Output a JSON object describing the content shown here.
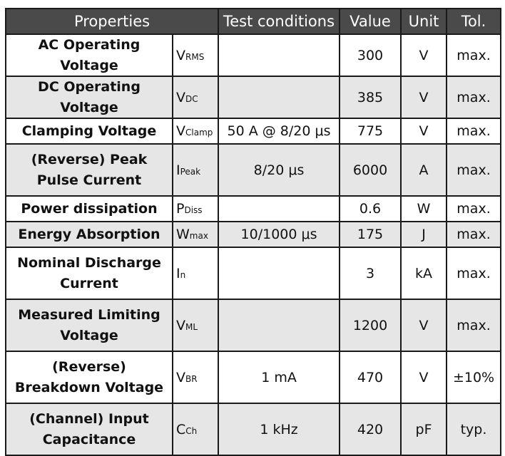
{
  "table": {
    "headers": [
      "Properties",
      "Test conditions",
      "Value",
      "Unit",
      "Tol."
    ],
    "rows": [
      {
        "property": "AC Operating Voltage",
        "symbol_main": "V",
        "symbol_sub": "RMS",
        "test_conditions": "",
        "value": "300",
        "unit": "V",
        "tolerance": "max."
      },
      {
        "property": "DC Operating Voltage",
        "symbol_main": "V",
        "symbol_sub": "DC",
        "test_conditions": "",
        "value": "385",
        "unit": "V",
        "tolerance": "max."
      },
      {
        "property": "Clamping Voltage",
        "symbol_main": "V",
        "symbol_sub": "Clamp",
        "test_conditions": "50 A @ 8/20 μs",
        "value": "775",
        "unit": "V",
        "tolerance": "max."
      },
      {
        "property": "(Reverse) Peak Pulse Current",
        "symbol_main": "I",
        "symbol_sub": "Peak",
        "test_conditions": "8/20 μs",
        "value": "6000",
        "unit": "A",
        "tolerance": "max."
      },
      {
        "property": "Power dissipation",
        "symbol_main": "P",
        "symbol_sub": "Diss",
        "test_conditions": "",
        "value": "0.6",
        "unit": "W",
        "tolerance": "max."
      },
      {
        "property": "Energy Absorption",
        "symbol_main": "W",
        "symbol_sub": "max",
        "test_conditions": "10/1000 μs",
        "value": "175",
        "unit": "J",
        "tolerance": "max."
      },
      {
        "property": "Nominal Discharge Current",
        "symbol_main": "I",
        "symbol_sub": "n",
        "test_conditions": "",
        "value": "3",
        "unit": "kA",
        "tolerance": "max."
      },
      {
        "property": "Measured Limiting Voltage",
        "symbol_main": "V",
        "symbol_sub": "ML",
        "test_conditions": "",
        "value": "1200",
        "unit": "V",
        "tolerance": "max."
      },
      {
        "property": "(Reverse) Breakdown Voltage",
        "symbol_main": "V",
        "symbol_sub": "BR",
        "test_conditions": "1 mA",
        "value": "470",
        "unit": "V",
        "tolerance": "±10%"
      },
      {
        "property": "(Channel) Input Capacitance",
        "symbol_main": "C",
        "symbol_sub": "Ch",
        "test_conditions": "1 kHz",
        "value": "420",
        "unit": "pF",
        "tolerance": "typ."
      }
    ]
  },
  "colors": {
    "header_bg": "#4a4a4a",
    "header_text": "#ffffff",
    "alt_row_bg": "#e6e6e6",
    "border": "#1a1a1a"
  }
}
